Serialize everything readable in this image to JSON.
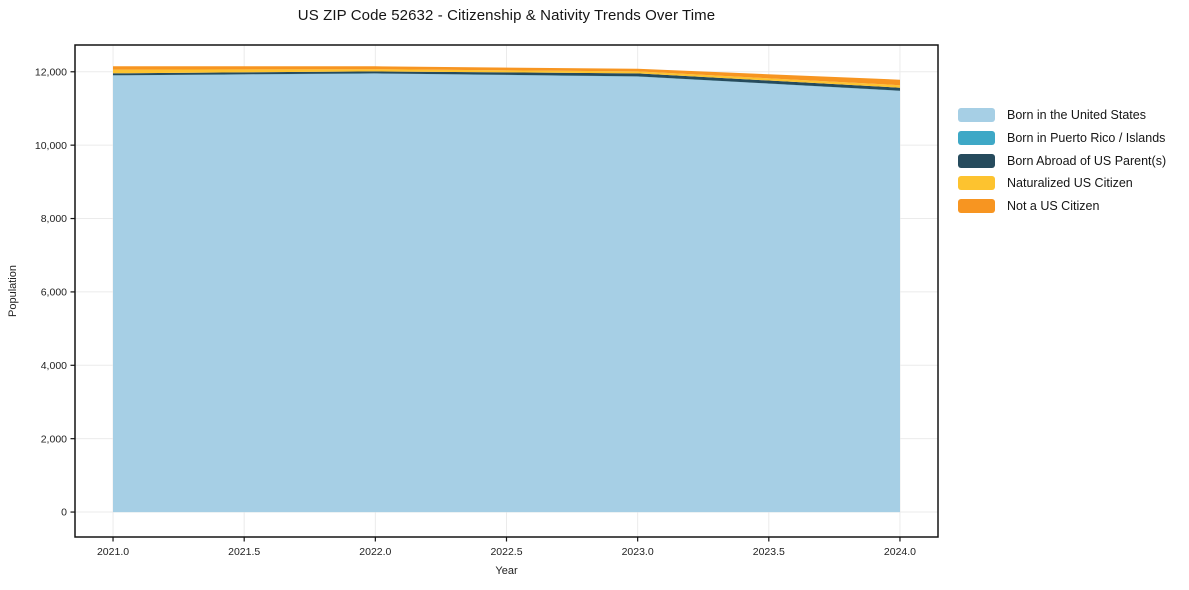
{
  "chart_data": {
    "type": "area",
    "stacked": true,
    "title": "US ZIP Code 52632 - Citizenship & Nativity Trends Over Time",
    "xlabel": "Year",
    "ylabel": "Population",
    "x": [
      2021,
      2022,
      2023,
      2024
    ],
    "series": [
      {
        "name": "Born in the United States",
        "color": "#a6cfe5",
        "values": [
          11900,
          11950,
          11870,
          11480
        ]
      },
      {
        "name": "Born in Puerto Rico / Islands",
        "color": "#3ea8c6",
        "values": [
          5,
          5,
          5,
          5
        ]
      },
      {
        "name": "Born Abroad of US Parent(s)",
        "color": "#264b5d",
        "values": [
          55,
          55,
          80,
          80
        ]
      },
      {
        "name": "Naturalized US Citizen",
        "color": "#fdc32f",
        "values": [
          100,
          60,
          55,
          70
        ]
      },
      {
        "name": "Not a US Citizen",
        "color": "#f79521",
        "values": [
          90,
          80,
          70,
          150
        ]
      }
    ],
    "xticks": {
      "values": [
        2021.0,
        2021.5,
        2022.0,
        2022.5,
        2023.0,
        2023.5,
        2024.0
      ],
      "labels": [
        "2021.0",
        "2021.5",
        "2022.0",
        "2022.5",
        "2023.0",
        "2023.5",
        "2024.0"
      ]
    },
    "yticks": {
      "values": [
        0,
        2000,
        4000,
        6000,
        8000,
        10000,
        12000
      ],
      "labels": [
        "0",
        "2,000",
        "4,000",
        "6,000",
        "8,000",
        "10,000",
        "12,000"
      ]
    },
    "xlim": [
      2020.855,
      2024.145
    ],
    "ylim": [
      -680,
      12730
    ],
    "grid": true,
    "grid_color": "#ebebeb",
    "spine_color": "#141414",
    "legend_position": "right"
  }
}
